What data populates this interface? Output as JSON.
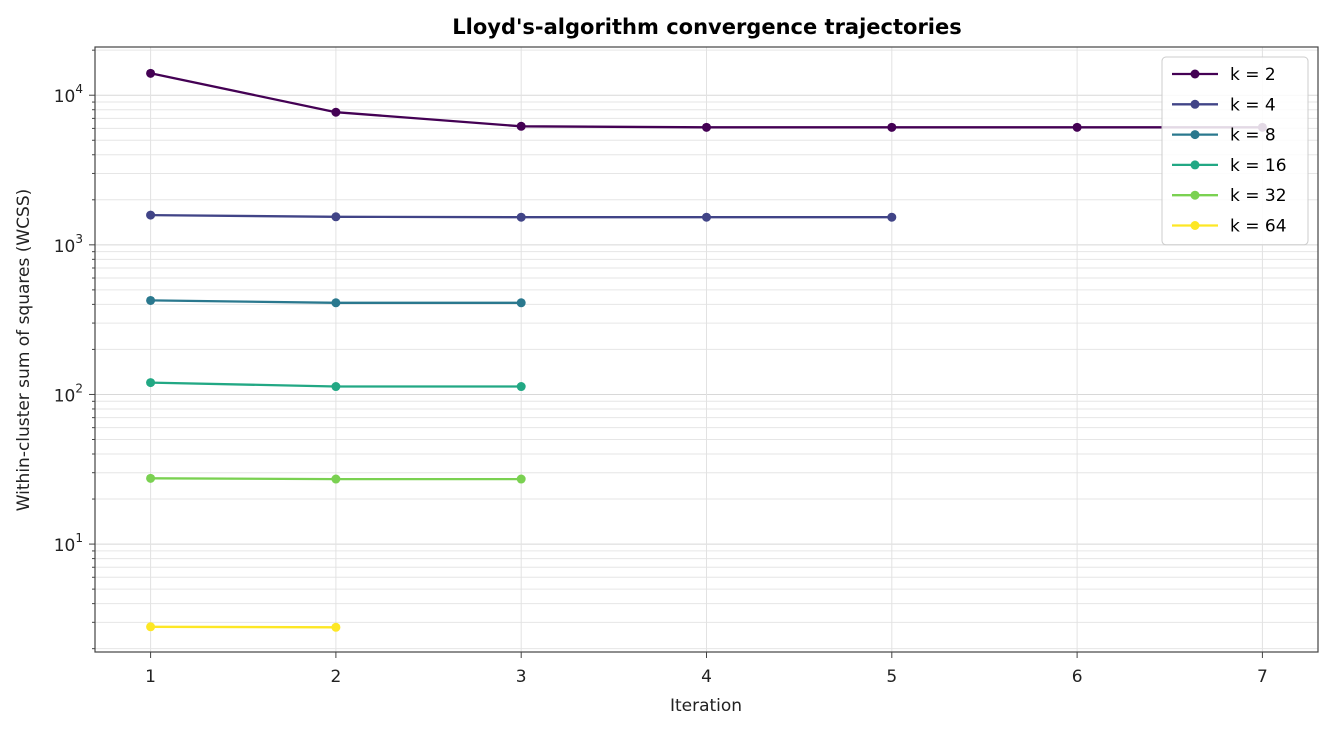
{
  "chart_data": {
    "type": "line",
    "title": "Lloyd's-algorithm convergence trajectories",
    "xlabel": "Iteration",
    "ylabel": "Within-cluster sum of squares (WCSS)",
    "y_scale": "log",
    "xlim": [
      0.7,
      7.3
    ],
    "ylim": [
      1.9,
      21000
    ],
    "x_ticks": [
      1,
      2,
      3,
      4,
      5,
      6,
      7
    ],
    "y_ticks": [
      {
        "value": 10,
        "base": "10",
        "exp": "1"
      },
      {
        "value": 100,
        "base": "10",
        "exp": "2"
      },
      {
        "value": 1000,
        "base": "10",
        "exp": "3"
      },
      {
        "value": 10000,
        "base": "10",
        "exp": "4"
      }
    ],
    "grid": true,
    "legend_position": "top-right",
    "series": [
      {
        "name": "k = 2",
        "color": "#440154",
        "x": [
          1,
          2,
          3,
          4,
          5,
          6,
          7
        ],
        "y": [
          14000,
          7700,
          6200,
          6100,
          6100,
          6100,
          6100
        ]
      },
      {
        "name": "k = 4",
        "color": "#414487",
        "x": [
          1,
          2,
          3,
          4,
          5
        ],
        "y": [
          1580,
          1540,
          1530,
          1530,
          1530
        ]
      },
      {
        "name": "k = 8",
        "color": "#2a788e",
        "x": [
          1,
          2,
          3
        ],
        "y": [
          425,
          410,
          410
        ]
      },
      {
        "name": "k = 16",
        "color": "#22a884",
        "x": [
          1,
          2,
          3
        ],
        "y": [
          120,
          113,
          113
        ]
      },
      {
        "name": "k = 32",
        "color": "#7ad151",
        "x": [
          1,
          2,
          3
        ],
        "y": [
          27.5,
          27.2,
          27.2
        ]
      },
      {
        "name": "k = 64",
        "color": "#fde725",
        "x": [
          1,
          2
        ],
        "y": [
          2.8,
          2.78
        ]
      }
    ]
  }
}
